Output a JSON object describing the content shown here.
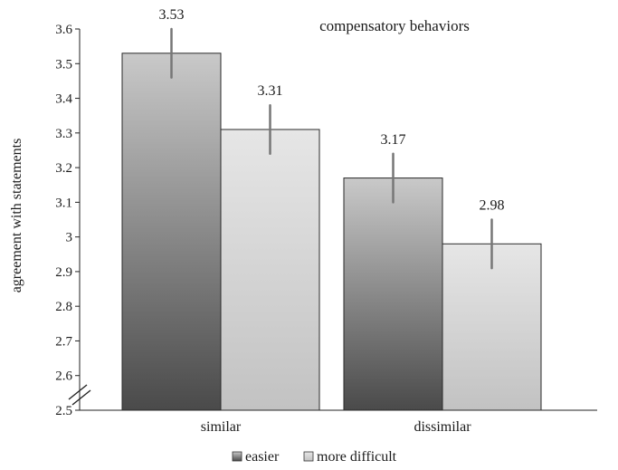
{
  "chart_data": {
    "type": "bar",
    "title": "compensatory behaviors",
    "xlabel": "",
    "ylabel": "agreement with statements",
    "ylim": [
      2.5,
      3.6
    ],
    "yticks": [
      "2.5",
      "2.6",
      "2.7",
      "2.8",
      "2.9",
      "3",
      "3.1",
      "3.2",
      "3.3",
      "3.4",
      "3.5",
      "3.6"
    ],
    "axis_break": true,
    "grid": false,
    "legend_position": "bottom",
    "categories": [
      "similar",
      "dissimilar"
    ],
    "series": [
      {
        "name": "easier",
        "values": [
          3.53,
          3.17
        ],
        "value_labels": [
          "3.53",
          "3.17"
        ],
        "error": [
          0.07,
          0.07
        ],
        "fill": "gradient-dark"
      },
      {
        "name": "more difficult",
        "values": [
          3.31,
          2.98
        ],
        "value_labels": [
          "3.31",
          "2.98"
        ],
        "error": [
          0.07,
          0.07
        ],
        "fill": "gradient-light"
      }
    ]
  }
}
